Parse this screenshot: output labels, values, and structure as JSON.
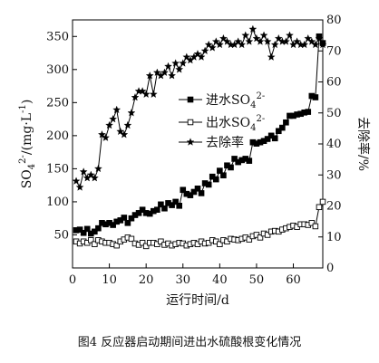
{
  "caption": "图4 反应器启动期间进出水硫酸根变化情况",
  "chart_data": {
    "type": "line",
    "title": "",
    "xlabel": "运行时间/d",
    "ylabel_left": "SO4^2-/(mg·L^-1)",
    "ylabel_right": "去除率/%",
    "xlim": [
      0,
      68
    ],
    "ylim_left": [
      0,
      375
    ],
    "ylim_right": [
      0,
      80
    ],
    "xticks": [
      0,
      10,
      20,
      30,
      40,
      50,
      60
    ],
    "yticks_left": [
      50,
      100,
      150,
      200,
      250,
      300,
      350
    ],
    "yticks_right": [
      0,
      10,
      20,
      30,
      40,
      50,
      60,
      70,
      80
    ],
    "legend_position": "center-right",
    "series": [
      {
        "name": "进水SO4^2-",
        "axis": "left",
        "marker": "filled-square",
        "x": [
          1,
          2,
          3,
          4,
          5,
          6,
          7,
          8,
          9,
          10,
          11,
          12,
          13,
          14,
          15,
          16,
          17,
          18,
          19,
          20,
          21,
          22,
          23,
          24,
          25,
          26,
          27,
          28,
          29,
          30,
          31,
          32,
          33,
          34,
          35,
          36,
          37,
          38,
          39,
          40,
          41,
          42,
          43,
          44,
          45,
          46,
          47,
          48,
          49,
          50,
          51,
          52,
          53,
          54,
          55,
          56,
          57,
          58,
          59,
          60,
          61,
          62,
          63,
          64,
          65,
          66,
          67,
          68
        ],
        "values": [
          57,
          58,
          53,
          59,
          52,
          55,
          60,
          68,
          66,
          68,
          65,
          70,
          72,
          76,
          68,
          75,
          80,
          83,
          88,
          83,
          82,
          86,
          88,
          96,
          90,
          98,
          95,
          100,
          94,
          118,
          112,
          110,
          115,
          120,
          113,
          128,
          126,
          138,
          134,
          147,
          140,
          155,
          152,
          165,
          160,
          163,
          165,
          162,
          190,
          188,
          190,
          192,
          195,
          200,
          196,
          207,
          212,
          220,
          230,
          230,
          232,
          233,
          235,
          236,
          260,
          258,
          350,
          340
        ]
      },
      {
        "name": "出水SO4^2-",
        "axis": "left",
        "marker": "open-square",
        "x": [
          1,
          2,
          3,
          4,
          5,
          6,
          7,
          8,
          9,
          10,
          11,
          12,
          13,
          14,
          15,
          16,
          17,
          18,
          19,
          20,
          21,
          22,
          23,
          24,
          25,
          26,
          27,
          28,
          29,
          30,
          31,
          32,
          33,
          34,
          35,
          36,
          37,
          38,
          39,
          40,
          41,
          42,
          43,
          44,
          45,
          46,
          47,
          48,
          49,
          50,
          51,
          52,
          53,
          54,
          55,
          56,
          57,
          58,
          59,
          60,
          61,
          62,
          63,
          64,
          65,
          66,
          67,
          68
        ],
        "values": [
          40,
          37,
          40,
          38,
          42,
          36,
          42,
          40,
          38,
          38,
          36,
          34,
          40,
          43,
          46,
          44,
          37,
          35,
          38,
          33,
          38,
          38,
          36,
          40,
          35,
          37,
          34,
          36,
          38,
          37,
          34,
          36,
          38,
          36,
          40,
          37,
          38,
          42,
          40,
          36,
          42,
          40,
          44,
          43,
          42,
          44,
          46,
          43,
          48,
          50,
          46,
          52,
          50,
          55,
          56,
          55,
          58,
          60,
          62,
          64,
          62,
          66,
          66,
          65,
          68,
          63,
          92,
          100
        ]
      },
      {
        "name": "去除率",
        "axis": "right",
        "marker": "filled-star",
        "x": [
          1,
          2,
          3,
          4,
          5,
          6,
          7,
          8,
          9,
          10,
          11,
          12,
          13,
          14,
          15,
          16,
          17,
          18,
          19,
          20,
          21,
          22,
          23,
          24,
          25,
          26,
          27,
          28,
          29,
          30,
          31,
          32,
          33,
          34,
          35,
          36,
          37,
          38,
          39,
          40,
          41,
          42,
          43,
          44,
          45,
          46,
          47,
          48,
          49,
          50,
          51,
          52,
          53,
          54,
          55,
          56,
          57,
          58,
          59,
          60,
          61,
          62,
          63,
          64,
          65,
          66,
          67,
          68
        ],
        "values": [
          28,
          26,
          31,
          29,
          30,
          29,
          32,
          43,
          42,
          46,
          48,
          51,
          44,
          43,
          46,
          50,
          55,
          57,
          57,
          56,
          62,
          56,
          63,
          62,
          63,
          65,
          62,
          66,
          64,
          66,
          68,
          67,
          68,
          69,
          68,
          70,
          72,
          71,
          73,
          72,
          74,
          73,
          72,
          72,
          73,
          72,
          75,
          73,
          77,
          74,
          73,
          75,
          73,
          68,
          72,
          74,
          73,
          73,
          75,
          72,
          73,
          72,
          72,
          74,
          73,
          72,
          74,
          72
        ]
      }
    ]
  }
}
